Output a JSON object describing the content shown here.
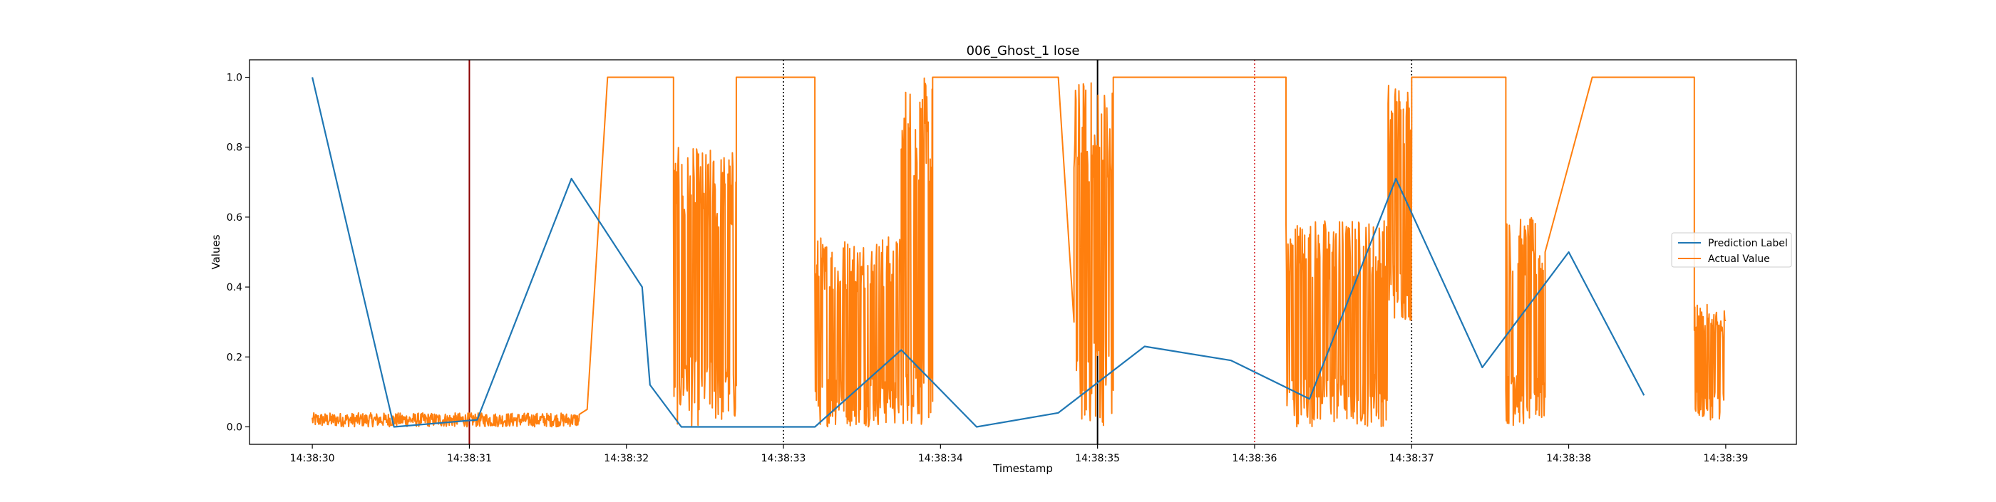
{
  "chart_data": {
    "type": "line",
    "title": "006_Ghost_1 lose",
    "xlabel": "Timestamp",
    "ylabel": "Values",
    "xlim": [
      -0.4,
      9.45
    ],
    "ylim": [
      -0.05,
      1.05
    ],
    "x_ticks": [
      {
        "t": 0,
        "label": "14:38:30"
      },
      {
        "t": 1,
        "label": "14:38:31"
      },
      {
        "t": 2,
        "label": "14:38:32"
      },
      {
        "t": 3,
        "label": "14:38:33"
      },
      {
        "t": 4,
        "label": "14:38:34"
      },
      {
        "t": 5,
        "label": "14:38:35"
      },
      {
        "t": 6,
        "label": "14:38:36"
      },
      {
        "t": 7,
        "label": "14:38:37"
      },
      {
        "t": 8,
        "label": "14:38:38"
      },
      {
        "t": 9,
        "label": "14:38:39"
      }
    ],
    "y_ticks": [
      {
        "v": 0.0,
        "label": "0.0"
      },
      {
        "v": 0.2,
        "label": "0.2"
      },
      {
        "v": 0.4,
        "label": "0.4"
      },
      {
        "v": 0.6,
        "label": "0.6"
      },
      {
        "v": 0.8,
        "label": "0.8"
      },
      {
        "v": 1.0,
        "label": "1.0"
      }
    ],
    "legend_position": "right",
    "series": [
      {
        "name": "Prediction Label",
        "color": "#1f77b4",
        "x": [
          0.0,
          0.52,
          1.05,
          1.65,
          2.1,
          2.15,
          2.35,
          3.2,
          3.75,
          4.23,
          4.75,
          5.3,
          5.85,
          6.35,
          6.9,
          7.45,
          8.0,
          8.48
        ],
        "y": [
          1.0,
          0.0,
          0.02,
          0.71,
          0.4,
          0.12,
          0.0,
          0.0,
          0.22,
          0.0,
          0.04,
          0.23,
          0.19,
          0.08,
          0.71,
          0.17,
          0.5,
          0.09
        ]
      },
      {
        "name": "Actual Value",
        "color": "#ff7f0e",
        "segments": [
          {
            "type": "noise",
            "x0": 0.0,
            "x1": 1.7,
            "min": 0.0,
            "max": 0.04
          },
          {
            "type": "ramp",
            "x0": 1.75,
            "x1": 1.88,
            "y0": 0.05,
            "y1": 1.0
          },
          {
            "type": "flat",
            "x0": 1.88,
            "x1": 2.3,
            "y": 1.0
          },
          {
            "type": "noise",
            "x0": 2.3,
            "x1": 2.7,
            "min": 0.0,
            "max": 0.8
          },
          {
            "type": "flat",
            "x0": 2.7,
            "x1": 3.2,
            "y": 1.0
          },
          {
            "type": "noise",
            "x0": 3.2,
            "x1": 3.75,
            "min": 0.0,
            "max": 0.55
          },
          {
            "type": "noise",
            "x0": 3.75,
            "x1": 3.95,
            "min": 0.0,
            "max": 1.0
          },
          {
            "type": "flat",
            "x0": 3.95,
            "x1": 4.75,
            "y": 1.0
          },
          {
            "type": "ramp",
            "x0": 4.75,
            "x1": 4.85,
            "y0": 1.0,
            "y1": 0.3
          },
          {
            "type": "noise",
            "x0": 4.85,
            "x1": 5.1,
            "min": 0.0,
            "max": 1.0
          },
          {
            "type": "flat",
            "x0": 5.1,
            "x1": 6.2,
            "y": 1.0
          },
          {
            "type": "noise",
            "x0": 6.2,
            "x1": 6.85,
            "min": 0.0,
            "max": 0.6
          },
          {
            "type": "noise",
            "x0": 6.85,
            "x1": 7.0,
            "min": 0.3,
            "max": 1.0
          },
          {
            "type": "flat",
            "x0": 7.0,
            "x1": 7.6,
            "y": 1.0
          },
          {
            "type": "noise",
            "x0": 7.6,
            "x1": 7.85,
            "min": 0.0,
            "max": 0.6
          },
          {
            "type": "ramp",
            "x0": 7.85,
            "x1": 8.15,
            "y0": 0.5,
            "y1": 1.0
          },
          {
            "type": "flat",
            "x0": 8.15,
            "x1": 8.8,
            "y": 1.0
          },
          {
            "type": "noise",
            "x0": 8.8,
            "x1": 9.0,
            "min": 0.02,
            "max": 0.35
          }
        ]
      }
    ],
    "vertical_lines": [
      {
        "t": 1.0,
        "color": "#8b0000",
        "style": "solid"
      },
      {
        "t": 3.0,
        "color": "#000000",
        "style": "dotted"
      },
      {
        "t": 5.0,
        "color": "#000000",
        "style": "solid"
      },
      {
        "t": 6.0,
        "color": "#d62728",
        "style": "dotted"
      },
      {
        "t": 7.0,
        "color": "#000000",
        "style": "dotted"
      }
    ]
  }
}
